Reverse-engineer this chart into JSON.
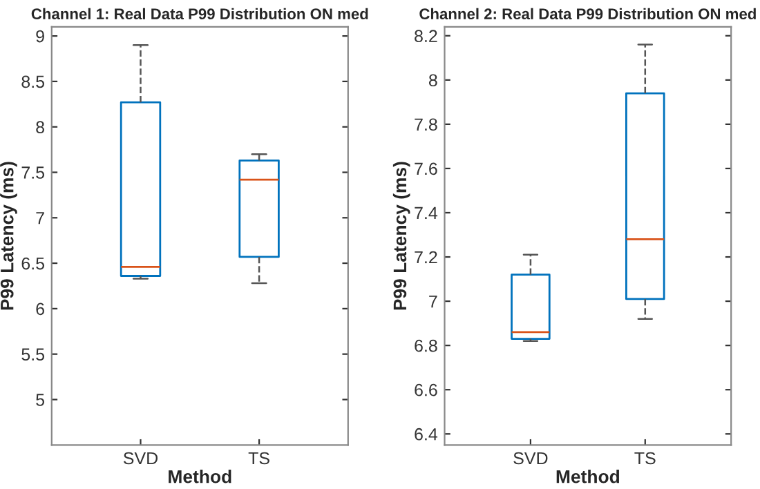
{
  "chart_data": [
    {
      "type": "box",
      "title": "Channel 1: Real Data P99 Distribution ON med",
      "xlabel": "Method",
      "ylabel": "P99 Latency (ms)",
      "categories": [
        "SVD",
        "TS"
      ],
      "color": "#0072bd",
      "line_style": "dashed",
      "boxes": [
        {
          "low": 6.33,
          "q1": 6.36,
          "median": 6.46,
          "q3": 8.27,
          "high": 8.9
        },
        {
          "low": 6.28,
          "q1": 6.57,
          "median": 7.42,
          "q3": 7.63,
          "high": 7.7
        }
      ],
      "ylim": [
        4.5,
        9.1
      ],
      "yticks": [
        5,
        5.5,
        6,
        6.5,
        7,
        7.5,
        8,
        8.5,
        9
      ],
      "grid": false
    },
    {
      "type": "box",
      "title": "Channel 2: Real Data P99 Distribution ON med",
      "xlabel": "Method",
      "ylabel": "P99 Latency (ms)",
      "categories": [
        "SVD",
        "TS"
      ],
      "color": "#0072bd",
      "line_style": "dashed",
      "boxes": [
        {
          "low": 6.82,
          "q1": 6.83,
          "median": 6.86,
          "q3": 7.12,
          "high": 7.21
        },
        {
          "low": 6.92,
          "q1": 7.01,
          "median": 7.28,
          "q3": 7.94,
          "high": 8.16
        }
      ],
      "ylim": [
        6.35,
        8.24
      ],
      "yticks": [
        6.4,
        6.6,
        6.8,
        7,
        7.2,
        7.4,
        7.6,
        7.8,
        8,
        8.2
      ],
      "grid": false
    }
  ]
}
